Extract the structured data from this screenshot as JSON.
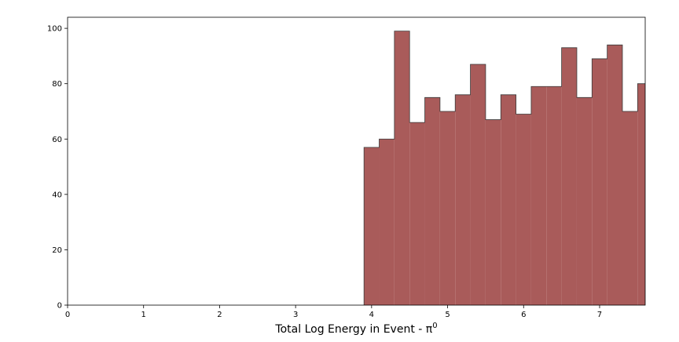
{
  "chart_data": {
    "type": "bar",
    "title": "",
    "xlabel": "Total Log Energy in Event - π",
    "xlabel_superscript": "0",
    "ylabel": "",
    "xlim": [
      0,
      7.6
    ],
    "ylim": [
      0,
      104
    ],
    "x_ticks": [
      "0",
      "1",
      "2",
      "3",
      "4",
      "5",
      "6",
      "7"
    ],
    "y_ticks": [
      "0",
      "20",
      "40",
      "60",
      "80",
      "100"
    ],
    "grid": false,
    "bin_edges": [
      3.9,
      4.1,
      4.3,
      4.5,
      4.7,
      4.9,
      5.1,
      5.3,
      5.5,
      5.7,
      5.9,
      6.1,
      6.3,
      6.5,
      6.7,
      6.9,
      7.1,
      7.3,
      7.5,
      7.7
    ],
    "values": [
      57,
      60,
      99,
      66,
      75,
      70,
      76,
      87,
      67,
      76,
      69,
      79,
      79,
      93,
      75,
      89,
      94,
      70,
      80
    ],
    "fill_color": "#a95b5a",
    "edge_color": "#3a3a3a"
  }
}
